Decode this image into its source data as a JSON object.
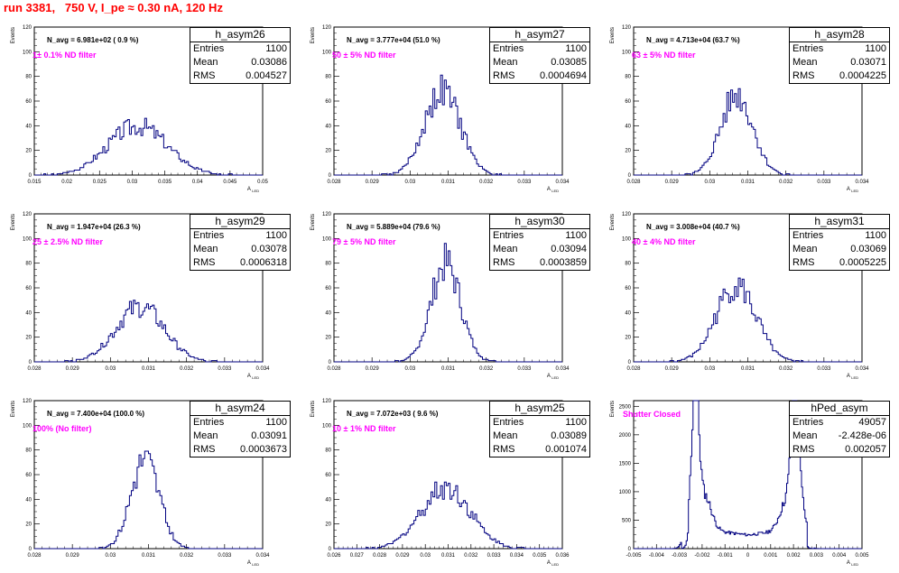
{
  "title": "run 3381,   750 V, I_pe ≈ 0.30 nA, 120 Hz",
  "labels": {
    "ylabel": "Events",
    "xlabel": "A",
    "xlabel_sub": "LED"
  },
  "colors": {
    "title": "#ff0000",
    "hist": "#000080",
    "annotation": "#ff00ff"
  },
  "stat_labels": {
    "entries": "Entries",
    "mean": "Mean",
    "rms": "RMS"
  },
  "panels": [
    {
      "name": "h_asym26",
      "entries": "1100",
      "mean": "0.03086",
      "rms": "0.004527",
      "navg": "N_avg = 6.981e+02 ( 0.9 %)",
      "filter": "1± 0.1% ND filter"
    },
    {
      "name": "h_asym27",
      "entries": "1100",
      "mean": "0.03085",
      "rms": "0.0004694",
      "navg": "N_avg = 3.777e+04 (51.0 %)",
      "filter": "50 ± 5% ND filter"
    },
    {
      "name": "h_asym28",
      "entries": "1100",
      "mean": "0.03071",
      "rms": "0.0004225",
      "navg": "N_avg = 4.713e+04 (63.7 %)",
      "filter": "63 ± 5% ND filter"
    },
    {
      "name": "h_asym29",
      "entries": "1100",
      "mean": "0.03078",
      "rms": "0.0006318",
      "navg": "N_avg = 1.947e+04 (26.3 %)",
      "filter": "25 ± 2.5% ND filter"
    },
    {
      "name": "h_asym30",
      "entries": "1100",
      "mean": "0.03094",
      "rms": "0.0003859",
      "navg": "N_avg = 5.889e+04 (79.6 %)",
      "filter": "79 ± 5% ND filter"
    },
    {
      "name": "h_asym31",
      "entries": "1100",
      "mean": "0.03069",
      "rms": "0.0005225",
      "navg": "N_avg = 3.008e+04 (40.7 %)",
      "filter": "40 ± 4% ND filter"
    },
    {
      "name": "h_asym24",
      "entries": "1100",
      "mean": "0.03091",
      "rms": "0.0003673",
      "navg": "N_avg = 7.400e+04 (100.0 %)",
      "filter": "100% (No filter)"
    },
    {
      "name": "h_asym25",
      "entries": "1100",
      "mean": "0.03089",
      "rms": "0.001074",
      "navg": "N_avg = 7.072e+03 ( 9.6 %)",
      "filter": "10 ± 1% ND filter"
    },
    {
      "name": "hPed_asym",
      "entries": "49057",
      "mean": "-2.428e-06",
      "rms": "0.002057",
      "navg": "",
      "filter": "Shutter Closed"
    }
  ],
  "chart_data": [
    {
      "type": "histogram",
      "title": "h_asym26",
      "xlabel": "A LED",
      "ylabel": "Events",
      "xlim": [
        0.015,
        0.05
      ],
      "ylim": [
        0,
        120
      ],
      "xticks": [
        "0.015",
        "0.02",
        "0.025",
        "0.03",
        "0.035",
        "0.04",
        "0.045",
        "0.05"
      ],
      "yticks": [
        "0",
        "20",
        "40",
        "60",
        "80",
        "100",
        "120"
      ],
      "mean": 0.03086,
      "rms": 0.004527,
      "peak": 40,
      "entries": 1100
    },
    {
      "type": "histogram",
      "title": "h_asym27",
      "xlabel": "A LED",
      "ylabel": "Events",
      "xlim": [
        0.028,
        0.034
      ],
      "ylim": [
        0,
        120
      ],
      "xticks": [
        "0.028",
        "0.029",
        "0.03",
        "0.031",
        "0.032",
        "0.033",
        "0.034"
      ],
      "yticks": [
        "0",
        "20",
        "40",
        "60",
        "80",
        "100",
        "120"
      ],
      "mean": 0.03085,
      "rms": 0.0004694,
      "peak": 68,
      "entries": 1100
    },
    {
      "type": "histogram",
      "title": "h_asym28",
      "xlabel": "A LED",
      "ylabel": "Events",
      "xlim": [
        0.028,
        0.034
      ],
      "ylim": [
        0,
        120
      ],
      "xticks": [
        "0.028",
        "0.029",
        "0.03",
        "0.031",
        "0.032",
        "0.033",
        "0.034"
      ],
      "yticks": [
        "0",
        "20",
        "40",
        "60",
        "80",
        "100",
        "120"
      ],
      "mean": 0.03071,
      "rms": 0.0004225,
      "peak": 65,
      "entries": 1100
    },
    {
      "type": "histogram",
      "title": "h_asym29",
      "xlabel": "A LED",
      "ylabel": "Events",
      "xlim": [
        0.028,
        0.034
      ],
      "ylim": [
        0,
        120
      ],
      "xticks": [
        "0.028",
        "0.029",
        "0.03",
        "0.031",
        "0.032",
        "0.033",
        "0.034"
      ],
      "yticks": [
        "0",
        "20",
        "40",
        "60",
        "80",
        "100",
        "120"
      ],
      "mean": 0.03078,
      "rms": 0.0006318,
      "peak": 45,
      "entries": 1100
    },
    {
      "type": "histogram",
      "title": "h_asym30",
      "xlabel": "A LED",
      "ylabel": "Events",
      "xlim": [
        0.028,
        0.034
      ],
      "ylim": [
        0,
        120
      ],
      "xticks": [
        "0.028",
        "0.029",
        "0.03",
        "0.031",
        "0.032",
        "0.033",
        "0.034"
      ],
      "yticks": [
        "0",
        "20",
        "40",
        "60",
        "80",
        "100",
        "120"
      ],
      "mean": 0.03094,
      "rms": 0.0003859,
      "peak": 80,
      "entries": 1100
    },
    {
      "type": "histogram",
      "title": "h_asym31",
      "xlabel": "A LED",
      "ylabel": "Events",
      "xlim": [
        0.028,
        0.034
      ],
      "ylim": [
        0,
        120
      ],
      "xticks": [
        "0.028",
        "0.029",
        "0.03",
        "0.031",
        "0.032",
        "0.033",
        "0.034"
      ],
      "yticks": [
        "0",
        "20",
        "40",
        "60",
        "80",
        "100",
        "120"
      ],
      "mean": 0.03069,
      "rms": 0.0005225,
      "peak": 62,
      "entries": 1100
    },
    {
      "type": "histogram",
      "title": "h_asym24",
      "xlabel": "A LED",
      "ylabel": "Events",
      "xlim": [
        0.028,
        0.034
      ],
      "ylim": [
        0,
        120
      ],
      "xticks": [
        "0.028",
        "0.029",
        "0.03",
        "0.031",
        "0.032",
        "0.033",
        "0.034"
      ],
      "yticks": [
        "0",
        "20",
        "40",
        "60",
        "80",
        "100",
        "120"
      ],
      "mean": 0.03091,
      "rms": 0.0003673,
      "peak": 73,
      "entries": 1100
    },
    {
      "type": "histogram",
      "title": "h_asym25",
      "xlabel": "A LED",
      "ylabel": "Events",
      "xlim": [
        0.026,
        0.036
      ],
      "ylim": [
        0,
        120
      ],
      "xticks": [
        "0.026",
        "0.027",
        "0.028",
        "0.029",
        "0.03",
        "0.031",
        "0.032",
        "0.033",
        "0.034",
        "0.035",
        "0.036"
      ],
      "yticks": [
        "0",
        "20",
        "40",
        "60",
        "80",
        "100",
        "120"
      ],
      "mean": 0.03089,
      "rms": 0.001074,
      "peak": 50,
      "entries": 1100
    },
    {
      "type": "histogram",
      "title": "hPed_asym",
      "xlabel": "A LED",
      "ylabel": "Events",
      "xlim": [
        -0.005,
        0.005
      ],
      "ylim": [
        0,
        2600
      ],
      "xticks": [
        "-0.005",
        "-0.004",
        "-0.003",
        "-0.002",
        "-0.001",
        "0",
        "0.001",
        "0.002",
        "0.003",
        "0.004",
        "0.005"
      ],
      "yticks": [
        "0",
        "500",
        "1000",
        "1500",
        "2000",
        "2500"
      ],
      "mean": -2.428e-06,
      "rms": 0.002057,
      "bimodal": true,
      "peaks": [
        {
          "x": -0.0023,
          "y": 2450
        },
        {
          "x": 0.0021,
          "y": 2300
        }
      ],
      "valley": 300,
      "entries": 49057
    }
  ]
}
